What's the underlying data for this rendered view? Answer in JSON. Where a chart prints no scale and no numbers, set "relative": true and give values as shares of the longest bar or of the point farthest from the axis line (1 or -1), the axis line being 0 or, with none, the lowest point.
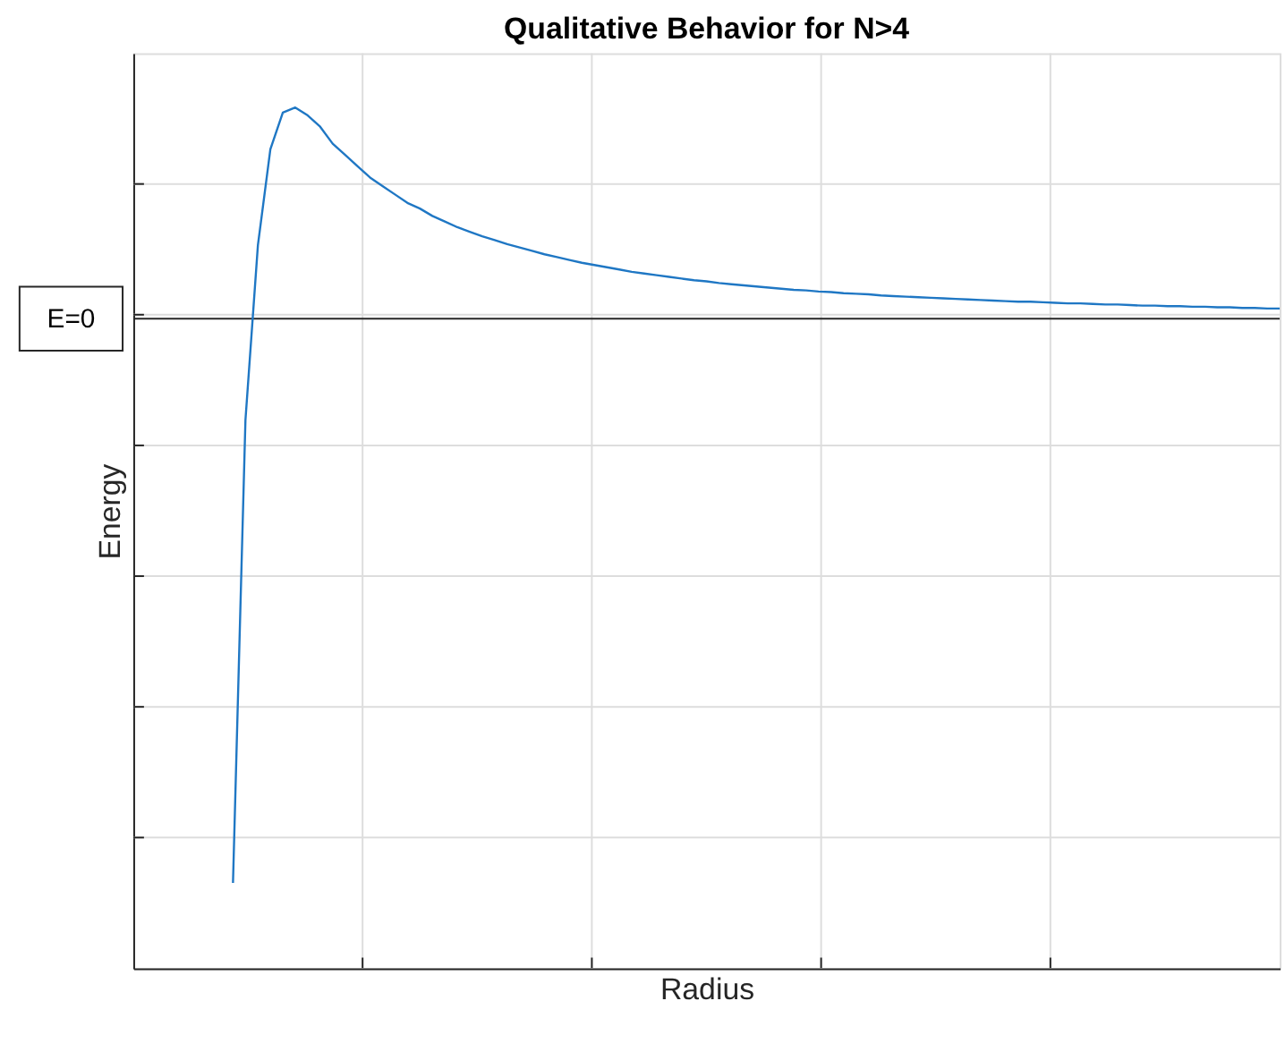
{
  "chart_data": {
    "type": "line",
    "title": "Qualitative Behavior for N>4",
    "xlabel": "Radius",
    "ylabel": "Energy",
    "relative": true,
    "grid": true,
    "marker": "none",
    "line_style": "solid",
    "categories": [
      null,
      null,
      null,
      null,
      null,
      null,
      null,
      null,
      null,
      null,
      null,
      null,
      null,
      null,
      null,
      null,
      null,
      null,
      null,
      null,
      null,
      null,
      null,
      null,
      null,
      null,
      null,
      null,
      null,
      null,
      null,
      null,
      null,
      null,
      null,
      null,
      null,
      null,
      null,
      null,
      null,
      null,
      null,
      null,
      null,
      null,
      null,
      null,
      null,
      null,
      null,
      null,
      null,
      null,
      null,
      null,
      null,
      null,
      null,
      null,
      null,
      null,
      null,
      null,
      null,
      null,
      null,
      null,
      null,
      null,
      null,
      null,
      null,
      null,
      null,
      null,
      null,
      null,
      null,
      null,
      null,
      null,
      null,
      null,
      null,
      null,
      null,
      null,
      null,
      null,
      null,
      null,
      null
    ],
    "series": [
      {
        "color": "#1f77c4",
        "values": [
          null,
          null,
          null,
          null,
          null,
          null,
          null,
          null,
          -1,
          -0.18,
          0.13,
          0.3,
          0.365,
          0.374,
          0.36,
          0.34,
          0.31,
          0.29,
          0.27,
          0.25,
          0.235,
          0.22,
          0.205,
          0.195,
          0.182,
          0.172,
          0.162,
          0.154,
          0.146,
          0.139,
          0.132,
          0.126,
          0.12,
          0.114,
          0.109,
          0.104,
          0.099,
          0.095,
          0.091,
          0.087,
          0.083,
          0.08,
          0.077,
          0.074,
          0.071,
          0.068,
          0.066,
          0.063,
          0.061,
          0.059,
          0.057,
          0.055,
          0.053,
          0.051,
          0.05,
          0.048,
          0.047,
          0.045,
          0.044,
          0.043,
          0.041,
          0.04,
          0.039,
          0.038,
          0.037,
          0.036,
          0.035,
          0.034,
          0.033,
          0.032,
          0.031,
          0.03,
          0.03,
          0.029,
          0.028,
          0.027,
          0.027,
          0.026,
          0.025,
          0.025,
          0.024,
          0.023,
          0.023,
          0.022,
          0.022,
          0.021,
          0.021,
          0.02,
          0.02,
          0.019,
          0.019,
          0.018,
          0.018
        ]
      }
    ],
    "ref_lines": [
      {
        "axis": "y",
        "value": 0,
        "label": "E=0",
        "color": "#262626"
      }
    ]
  }
}
